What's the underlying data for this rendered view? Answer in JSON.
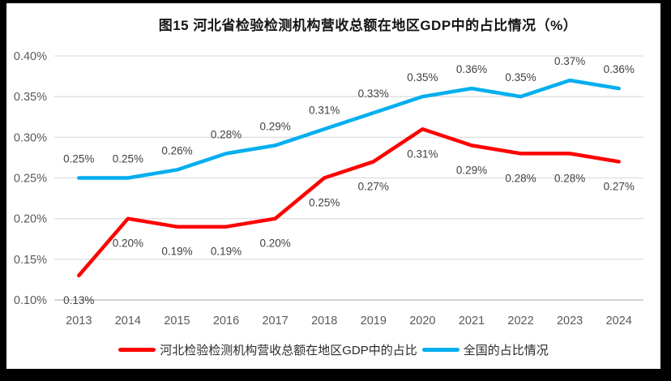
{
  "window": {
    "frame_color": "#000000",
    "canvas_background": "#ffffff"
  },
  "chart_data": {
    "type": "line",
    "title": "图15 河北省检验检测机构营收总额在地区GDP中的占比情况（%）",
    "categories": [
      "2013",
      "2014",
      "2015",
      "2016",
      "2017",
      "2018",
      "2019",
      "2020",
      "2021",
      "2022",
      "2023",
      "2024"
    ],
    "series": [
      {
        "name": "河北检验检测机构营收总额在地区GDP中的占比",
        "color": "#FF0000",
        "values": [
          0.13,
          0.2,
          0.19,
          0.19,
          0.2,
          0.25,
          0.27,
          0.31,
          0.29,
          0.28,
          0.28,
          0.27
        ],
        "data_labels": [
          "0.13%",
          "0.20%",
          "0.19%",
          "0.19%",
          "0.20%",
          "0.25%",
          "0.27%",
          "0.31%",
          "0.29%",
          "0.28%",
          "0.28%",
          "0.27%"
        ],
        "label_position": "below"
      },
      {
        "name": "全国的占比情况",
        "color": "#00AEEF",
        "values": [
          0.25,
          0.25,
          0.26,
          0.28,
          0.29,
          0.31,
          0.33,
          0.35,
          0.36,
          0.35,
          0.37,
          0.36
        ],
        "data_labels": [
          "0.25%",
          "0.25%",
          "0.26%",
          "0.28%",
          "0.29%",
          "0.31%",
          "0.33%",
          "0.35%",
          "0.36%",
          "0.35%",
          "0.37%",
          "0.36%"
        ],
        "label_position": "above"
      }
    ],
    "y_axis": {
      "ticks": [
        "0.40%",
        "0.35%",
        "0.30%",
        "0.25%",
        "0.20%",
        "0.15%",
        "0.10%"
      ],
      "min": 0.1,
      "max": 0.4,
      "tick_step": 0.05
    },
    "xlabel": "",
    "ylabel": "",
    "grid": true,
    "legend_position": "bottom",
    "colors": {
      "gridline": "#D9D9D9",
      "axis_line": "#C6C6C6",
      "axis_text": "#595959",
      "data_label_text": "#3f3f3f",
      "title_text": "#151515"
    }
  }
}
